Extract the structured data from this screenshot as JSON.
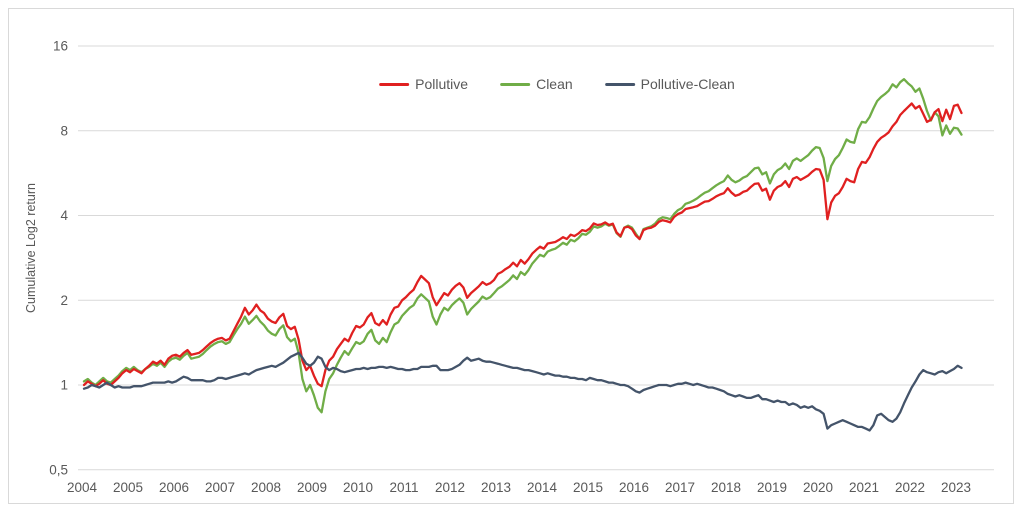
{
  "figure": {
    "background": "#ffffff",
    "border_color": "#d9d9d9",
    "gridline_color": "#d9d9d9",
    "text_color": "#595959"
  },
  "chart_data": {
    "type": "line",
    "title": "",
    "ylabel": "Cumulative Log2 return",
    "xlabel": "",
    "y_scale": "log2",
    "ylim": [
      0.5,
      16
    ],
    "grid": "horizontal-only",
    "legend_position": "top-center",
    "x_start": "2004-01",
    "x_frequency": "monthly",
    "y_ticks": [
      {
        "label": "16",
        "value": 16
      },
      {
        "label": "8",
        "value": 8
      },
      {
        "label": "4",
        "value": 4
      },
      {
        "label": "2",
        "value": 2
      },
      {
        "label": "1",
        "value": 1
      },
      {
        "label": "0,5",
        "value": 0.5
      }
    ],
    "x_year_labels": [
      "2004",
      "2005",
      "2006",
      "2007",
      "2008",
      "2009",
      "2010",
      "2011",
      "2012",
      "2013",
      "2014",
      "2015",
      "2016",
      "2017",
      "2018",
      "2019",
      "2020",
      "2021",
      "2022",
      "2023"
    ],
    "series": [
      {
        "name": "Clean",
        "color": "#70ad47",
        "values": [
          1.03,
          1.05,
          1.02,
          1.0,
          1.03,
          1.06,
          1.03,
          1.02,
          1.05,
          1.08,
          1.12,
          1.15,
          1.13,
          1.16,
          1.13,
          1.11,
          1.14,
          1.16,
          1.19,
          1.17,
          1.2,
          1.16,
          1.21,
          1.24,
          1.25,
          1.23,
          1.27,
          1.3,
          1.24,
          1.25,
          1.26,
          1.29,
          1.33,
          1.37,
          1.4,
          1.42,
          1.43,
          1.4,
          1.42,
          1.5,
          1.58,
          1.65,
          1.75,
          1.65,
          1.7,
          1.76,
          1.68,
          1.63,
          1.56,
          1.52,
          1.5,
          1.58,
          1.63,
          1.48,
          1.43,
          1.46,
          1.3,
          1.05,
          0.95,
          1.0,
          0.92,
          0.83,
          0.8,
          0.95,
          1.05,
          1.1,
          1.18,
          1.25,
          1.32,
          1.28,
          1.35,
          1.42,
          1.4,
          1.43,
          1.52,
          1.57,
          1.44,
          1.4,
          1.47,
          1.42,
          1.54,
          1.64,
          1.67,
          1.76,
          1.82,
          1.88,
          1.92,
          2.03,
          2.1,
          2.04,
          1.98,
          1.75,
          1.64,
          1.78,
          1.88,
          1.84,
          1.92,
          1.98,
          2.03,
          1.96,
          1.78,
          1.86,
          1.92,
          1.98,
          2.06,
          2.02,
          2.05,
          2.12,
          2.2,
          2.24,
          2.3,
          2.36,
          2.45,
          2.38,
          2.52,
          2.46,
          2.56,
          2.7,
          2.8,
          2.9,
          2.86,
          2.98,
          3.02,
          3.05,
          3.12,
          3.2,
          3.15,
          3.28,
          3.24,
          3.32,
          3.44,
          3.42,
          3.5,
          3.66,
          3.62,
          3.66,
          3.74,
          3.68,
          3.72,
          3.46,
          3.36,
          3.62,
          3.68,
          3.62,
          3.45,
          3.3,
          3.58,
          3.62,
          3.66,
          3.74,
          3.88,
          3.94,
          3.92,
          3.88,
          4.05,
          4.18,
          4.25,
          4.4,
          4.45,
          4.52,
          4.6,
          4.72,
          4.82,
          4.88,
          5.0,
          5.12,
          5.22,
          5.3,
          5.55,
          5.35,
          5.25,
          5.32,
          5.45,
          5.52,
          5.7,
          5.88,
          5.92,
          5.6,
          5.7,
          5.2,
          5.6,
          5.8,
          5.9,
          6.12,
          5.85,
          6.25,
          6.38,
          6.25,
          6.4,
          6.55,
          6.8,
          7.0,
          6.95,
          6.4,
          5.3,
          6.0,
          6.35,
          6.55,
          6.95,
          7.45,
          7.3,
          7.25,
          8.1,
          8.6,
          8.55,
          8.95,
          9.6,
          10.2,
          10.55,
          10.8,
          11.1,
          11.7,
          11.4,
          11.9,
          12.2,
          11.8,
          11.5,
          11.0,
          11.3,
          10.4,
          9.4,
          8.7,
          9.3,
          9.0,
          7.7,
          8.35,
          7.8,
          8.2,
          8.15,
          7.75
        ]
      },
      {
        "name": "Pollutive",
        "color": "#e02020",
        "values": [
          1.0,
          1.03,
          1.01,
          0.99,
          1.01,
          1.04,
          1.01,
          1.0,
          1.03,
          1.06,
          1.1,
          1.13,
          1.11,
          1.14,
          1.12,
          1.1,
          1.14,
          1.17,
          1.21,
          1.19,
          1.22,
          1.18,
          1.24,
          1.27,
          1.28,
          1.26,
          1.3,
          1.33,
          1.28,
          1.29,
          1.3,
          1.33,
          1.37,
          1.41,
          1.44,
          1.46,
          1.47,
          1.44,
          1.46,
          1.55,
          1.65,
          1.75,
          1.88,
          1.78,
          1.84,
          1.93,
          1.84,
          1.8,
          1.72,
          1.68,
          1.66,
          1.74,
          1.79,
          1.62,
          1.58,
          1.61,
          1.45,
          1.22,
          1.13,
          1.17,
          1.08,
          1.01,
          0.99,
          1.13,
          1.22,
          1.26,
          1.34,
          1.4,
          1.46,
          1.43,
          1.53,
          1.62,
          1.6,
          1.64,
          1.74,
          1.8,
          1.66,
          1.63,
          1.7,
          1.64,
          1.78,
          1.88,
          1.9,
          2.0,
          2.05,
          2.12,
          2.18,
          2.32,
          2.44,
          2.37,
          2.3,
          2.05,
          1.92,
          2.02,
          2.12,
          2.08,
          2.18,
          2.25,
          2.3,
          2.22,
          2.04,
          2.12,
          2.18,
          2.24,
          2.32,
          2.27,
          2.3,
          2.36,
          2.48,
          2.52,
          2.58,
          2.63,
          2.72,
          2.64,
          2.78,
          2.7,
          2.8,
          2.93,
          3.02,
          3.1,
          3.05,
          3.18,
          3.2,
          3.22,
          3.28,
          3.35,
          3.3,
          3.42,
          3.38,
          3.45,
          3.55,
          3.52,
          3.6,
          3.75,
          3.7,
          3.72,
          3.78,
          3.7,
          3.74,
          3.48,
          3.38,
          3.62,
          3.65,
          3.58,
          3.4,
          3.3,
          3.55,
          3.6,
          3.62,
          3.68,
          3.8,
          3.85,
          3.82,
          3.78,
          3.95,
          4.05,
          4.1,
          4.22,
          4.25,
          4.28,
          4.32,
          4.4,
          4.48,
          4.5,
          4.58,
          4.68,
          4.75,
          4.8,
          5.0,
          4.82,
          4.7,
          4.75,
          4.85,
          4.9,
          5.05,
          5.18,
          5.2,
          4.9,
          4.98,
          4.55,
          4.9,
          5.05,
          5.12,
          5.3,
          5.05,
          5.4,
          5.48,
          5.35,
          5.45,
          5.55,
          5.72,
          5.85,
          5.82,
          5.35,
          3.88,
          4.45,
          4.7,
          4.8,
          5.05,
          5.4,
          5.3,
          5.25,
          5.85,
          6.2,
          6.15,
          6.45,
          6.9,
          7.3,
          7.55,
          7.7,
          7.9,
          8.3,
          8.6,
          9.1,
          9.4,
          9.7,
          10.0,
          9.6,
          9.8,
          9.2,
          8.6,
          8.75,
          9.3,
          9.55,
          8.65,
          9.5,
          8.8,
          9.8,
          9.9,
          9.25
        ]
      },
      {
        "name": "Pollutive-Clean",
        "color": "#44546a",
        "values": [
          0.97,
          0.98,
          1.0,
          0.99,
          0.98,
          1.0,
          1.02,
          1.0,
          0.98,
          0.99,
          0.98,
          0.98,
          0.98,
          0.99,
          0.99,
          0.99,
          1.0,
          1.01,
          1.02,
          1.02,
          1.02,
          1.02,
          1.03,
          1.02,
          1.03,
          1.05,
          1.07,
          1.06,
          1.04,
          1.04,
          1.04,
          1.04,
          1.03,
          1.03,
          1.04,
          1.06,
          1.06,
          1.05,
          1.06,
          1.07,
          1.08,
          1.09,
          1.1,
          1.09,
          1.11,
          1.13,
          1.14,
          1.15,
          1.16,
          1.17,
          1.16,
          1.18,
          1.2,
          1.23,
          1.26,
          1.28,
          1.3,
          1.25,
          1.19,
          1.17,
          1.2,
          1.26,
          1.24,
          1.16,
          1.13,
          1.15,
          1.14,
          1.12,
          1.11,
          1.12,
          1.13,
          1.14,
          1.14,
          1.15,
          1.14,
          1.15,
          1.15,
          1.16,
          1.16,
          1.15,
          1.16,
          1.15,
          1.14,
          1.14,
          1.13,
          1.13,
          1.14,
          1.14,
          1.16,
          1.16,
          1.16,
          1.17,
          1.17,
          1.13,
          1.13,
          1.13,
          1.14,
          1.16,
          1.18,
          1.22,
          1.25,
          1.22,
          1.23,
          1.24,
          1.22,
          1.21,
          1.21,
          1.2,
          1.19,
          1.18,
          1.17,
          1.16,
          1.15,
          1.15,
          1.14,
          1.13,
          1.13,
          1.12,
          1.11,
          1.1,
          1.09,
          1.1,
          1.09,
          1.08,
          1.08,
          1.07,
          1.07,
          1.06,
          1.06,
          1.05,
          1.05,
          1.04,
          1.06,
          1.05,
          1.04,
          1.04,
          1.03,
          1.02,
          1.02,
          1.01,
          1.0,
          1.0,
          0.99,
          0.97,
          0.95,
          0.94,
          0.96,
          0.97,
          0.98,
          0.99,
          1.0,
          1.0,
          1.0,
          0.99,
          1.0,
          1.01,
          1.01,
          1.02,
          1.01,
          1.0,
          1.01,
          1.0,
          0.99,
          0.98,
          0.98,
          0.97,
          0.96,
          0.95,
          0.93,
          0.92,
          0.91,
          0.92,
          0.91,
          0.9,
          0.9,
          0.91,
          0.92,
          0.89,
          0.89,
          0.88,
          0.87,
          0.88,
          0.87,
          0.87,
          0.85,
          0.86,
          0.85,
          0.83,
          0.84,
          0.83,
          0.84,
          0.82,
          0.81,
          0.79,
          0.7,
          0.72,
          0.73,
          0.74,
          0.75,
          0.74,
          0.73,
          0.72,
          0.71,
          0.71,
          0.7,
          0.69,
          0.72,
          0.78,
          0.79,
          0.77,
          0.75,
          0.74,
          0.76,
          0.8,
          0.86,
          0.92,
          0.98,
          1.03,
          1.09,
          1.13,
          1.11,
          1.1,
          1.09,
          1.11,
          1.12,
          1.1,
          1.12,
          1.14,
          1.17,
          1.15
        ]
      }
    ],
    "legend_order": [
      "Pollutive",
      "Clean",
      "Pollutive-Clean"
    ]
  }
}
